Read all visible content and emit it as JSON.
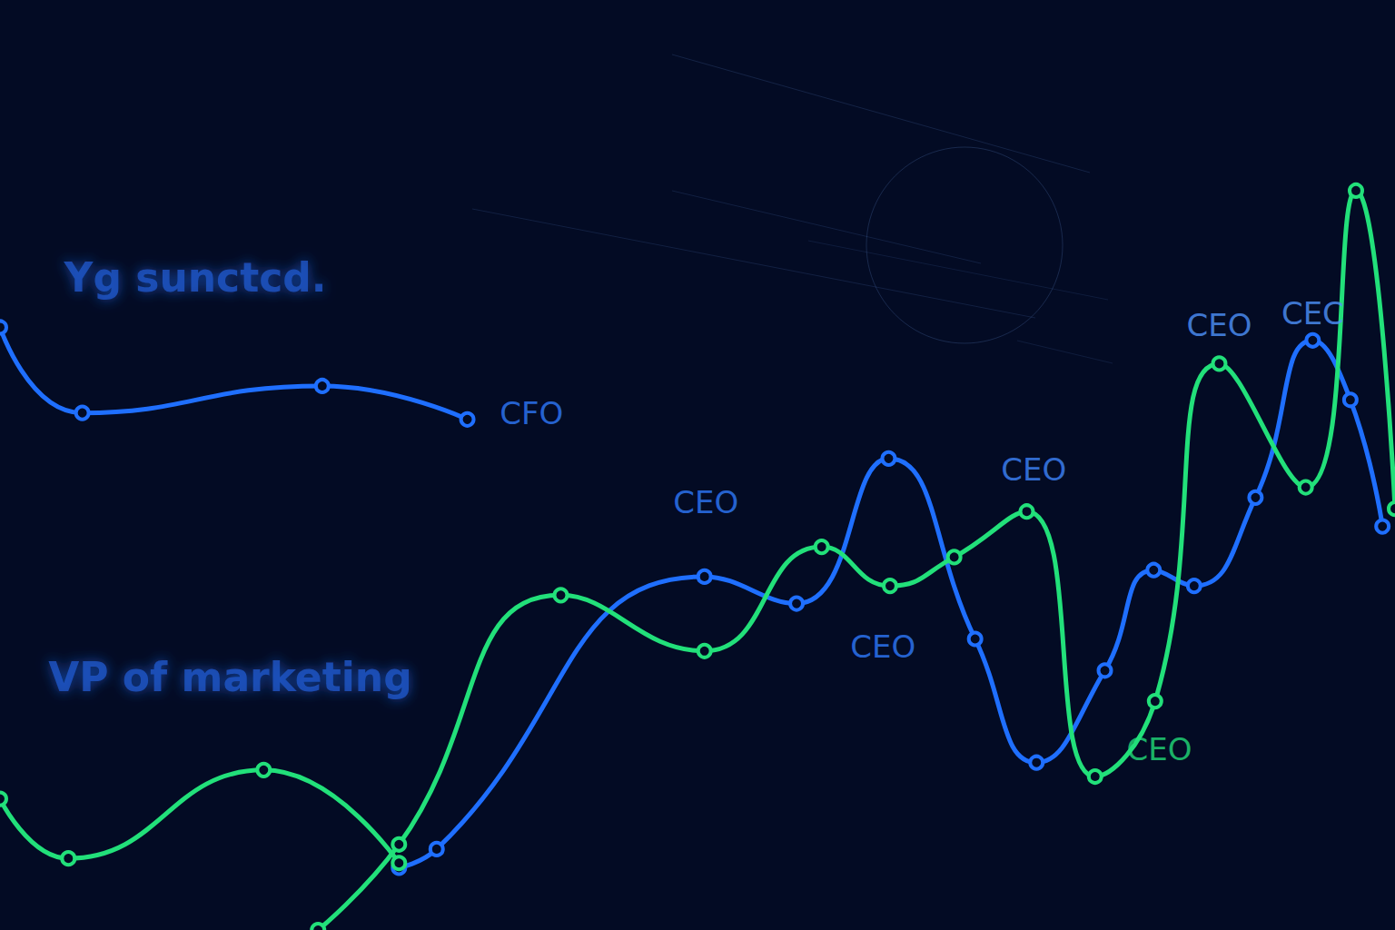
{
  "chart_data": {
    "type": "line",
    "xlim": [
      0,
      100
    ],
    "ylim": [
      0,
      100
    ],
    "grid": false,
    "tick_labels": false,
    "marker": "circle",
    "series": [
      {
        "color": "#1f6fff",
        "x": [
          0,
          5.9,
          23.1,
          33.5
        ],
        "values": [
          64.8,
          55.6,
          58.5,
          54.9
        ]
      },
      {
        "color": "#1f6fff",
        "x": [
          28.6,
          31.3,
          50.5,
          57.1,
          63.7,
          69.9,
          74.3,
          79.2,
          82.7,
          85.6,
          90.0,
          94.1,
          96.8,
          99.1
        ],
        "values": [
          6.7,
          8.7,
          38.0,
          35.1,
          50.7,
          31.3,
          18.0,
          27.9,
          38.7,
          37.0,
          46.5,
          63.4,
          57.0,
          43.4
        ]
      },
      {
        "color": "#22e07a",
        "x": [
          0,
          4.9,
          18.9,
          28.6
        ],
        "values": [
          14.1,
          7.7,
          17.2,
          7.2
        ]
      },
      {
        "color": "#22e07a",
        "x": [
          22.8,
          28.6,
          40.2,
          50.5,
          58.9,
          63.8,
          68.4,
          73.6,
          78.5,
          82.8,
          87.4,
          93.6,
          97.2,
          100
        ],
        "values": [
          0,
          9.2,
          36.0,
          30.0,
          41.2,
          37.0,
          40.1,
          45.0,
          16.5,
          24.6,
          60.9,
          47.6,
          79.5,
          45.3
        ]
      }
    ],
    "annotations": [
      {
        "text": "CFO",
        "x": 38.1,
        "y": 55.6,
        "color": "#2f7bff"
      },
      {
        "text": "CEO",
        "x": 50.6,
        "y": 46.0,
        "color": "#2f7bff"
      },
      {
        "text": "CEO",
        "x": 63.3,
        "y": 30.5,
        "color": "#2f7bff"
      },
      {
        "text": "CEO",
        "x": 74.1,
        "y": 49.5,
        "color": "#3f86ff"
      },
      {
        "text": "CEO",
        "x": 87.4,
        "y": 65.0,
        "color": "#4f95ff"
      },
      {
        "text": "CEC",
        "x": 94.1,
        "y": 66.3,
        "color": "#4f95ff"
      },
      {
        "text": "CEO",
        "x": 83.1,
        "y": 19.4,
        "color": "#22e07a"
      }
    ],
    "captions": [
      {
        "text": "Yg sunctcd.",
        "x": 14.0,
        "y": 70.2,
        "color": "#1e56c8"
      },
      {
        "text": "VP of marketing",
        "x": 16.5,
        "y": 27.2,
        "color": "#1e56c8"
      }
    ]
  }
}
